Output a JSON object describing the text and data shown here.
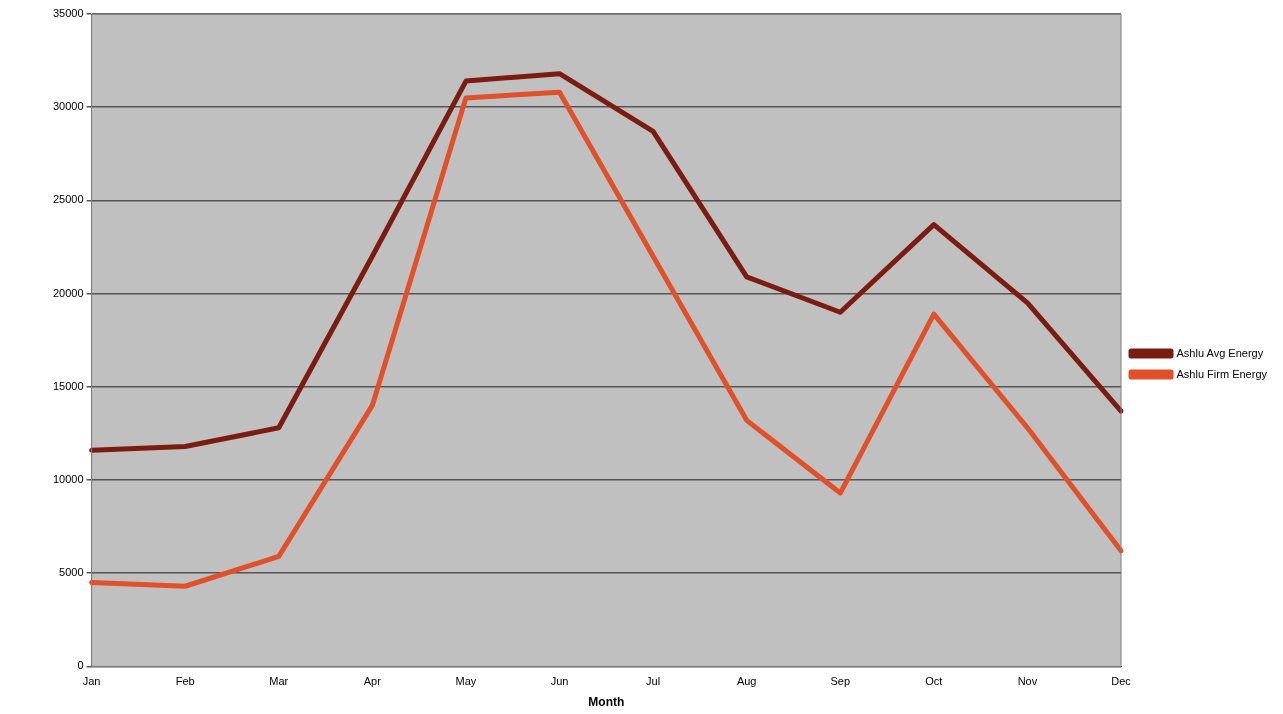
{
  "chart_data": {
    "type": "line",
    "xlabel": "Month",
    "categories": [
      "Jan",
      "Feb",
      "Mar",
      "Apr",
      "May",
      "Jun",
      "Jul",
      "Aug",
      "Sep",
      "Oct",
      "Nov",
      "Dec"
    ],
    "series": [
      {
        "name": "Ashlu Avg Energy",
        "color": "#7b1c13",
        "values": [
          11600,
          11800,
          12800,
          22000,
          31400,
          31800,
          28700,
          20900,
          19000,
          23700,
          19500,
          13700
        ]
      },
      {
        "name": "Ashlu Firm Energy",
        "color": "#e0502a",
        "values": [
          4500,
          4300,
          5900,
          14000,
          30500,
          30800,
          22000,
          13200,
          9300,
          18900,
          12800,
          6200
        ]
      }
    ],
    "ylim": [
      0,
      35000
    ],
    "yticks": [
      0,
      5000,
      10000,
      15000,
      20000,
      25000,
      30000,
      35000
    ],
    "grid": "y",
    "legend": "right",
    "marker": "none",
    "line_style": "solid"
  }
}
